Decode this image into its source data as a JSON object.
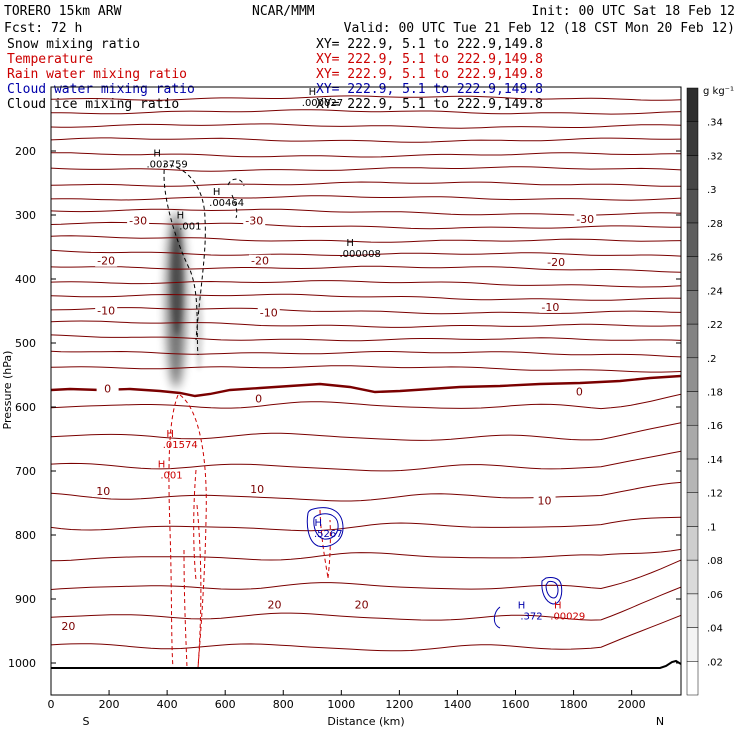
{
  "header": {
    "model": "TORERO  15km ARW",
    "org": "NCAR/MMM",
    "init": "Init: 00 UTC Sat 18 Feb 12",
    "fcst": "Fcst:   72 h",
    "valid": "Valid: 00 UTC Tue 21 Feb 12 (18 CST Mon 20 Feb 12)",
    "fields": [
      {
        "name": "Snow mixing ratio",
        "xy": "XY= 222.9,  5.1 to 222.9,149.8",
        "color": "#000000"
      },
      {
        "name": "Temperature",
        "xy": "XY= 222.9,  5.1 to 222.9,149.8",
        "color": "#cc0000"
      },
      {
        "name": "Rain water mixing ratio",
        "xy": "XY= 222.9,  5.1 to 222.9,149.8",
        "color": "#cc0000"
      },
      {
        "name": "Cloud water mixing ratio",
        "xy": "XY= 222.9,  5.1 to 222.9,149.8",
        "color": "#0000aa"
      },
      {
        "name": "Cloud ice mixing ratio",
        "xy": "XY= 222.9,  5.1 to 222.9,149.8",
        "color": "#000000"
      }
    ]
  },
  "chart_data": {
    "type": "cross-section contour",
    "xlabel": "Distance (km)",
    "ylabel": "Pressure (hPa)",
    "xlim": [
      0,
      2170
    ],
    "ylim": [
      1050,
      100
    ],
    "x_ticks": [
      0,
      200,
      400,
      600,
      800,
      1000,
      1200,
      1400,
      1600,
      1800,
      2000
    ],
    "y_ticks": [
      200,
      300,
      400,
      500,
      600,
      700,
      800,
      900,
      1000
    ],
    "x_end_labels": {
      "left": "S",
      "right": "N"
    },
    "colorbar": {
      "unit": "g kg⁻¹",
      "levels": [
        ".02",
        ".04",
        ".06",
        ".08",
        ".1",
        ".12",
        ".14",
        ".16",
        ".18",
        ".2",
        ".22",
        ".24",
        ".26",
        ".28",
        ".3",
        ".32",
        ".34"
      ]
    },
    "temperature_labels": [
      {
        "text": "-30",
        "x": 300,
        "p": 310
      },
      {
        "text": "-30",
        "x": 700,
        "p": 310
      },
      {
        "text": "-30",
        "x": 1840,
        "p": 308
      },
      {
        "text": "-20",
        "x": 190,
        "p": 373
      },
      {
        "text": "-20",
        "x": 720,
        "p": 373
      },
      {
        "text": "-20",
        "x": 1740,
        "p": 375
      },
      {
        "text": "-10",
        "x": 190,
        "p": 451
      },
      {
        "text": "-10",
        "x": 750,
        "p": 454
      },
      {
        "text": "-10",
        "x": 1720,
        "p": 445
      },
      {
        "text": "0",
        "x": 195,
        "p": 573
      },
      {
        "text": "0",
        "x": 715,
        "p": 588
      },
      {
        "text": "0",
        "x": 1820,
        "p": 577
      },
      {
        "text": "10",
        "x": 180,
        "p": 733
      },
      {
        "text": "10",
        "x": 710,
        "p": 730
      },
      {
        "text": "10",
        "x": 1700,
        "p": 748
      },
      {
        "text": "20",
        "x": 60,
        "p": 944
      },
      {
        "text": "20",
        "x": 770,
        "p": 910
      },
      {
        "text": "20",
        "x": 1070,
        "p": 910
      }
    ],
    "max_labels": [
      {
        "text": ".003759",
        "x": 400,
        "p": 226,
        "color": "#000000"
      },
      {
        "text": ".00464",
        "x": 605,
        "p": 286,
        "color": "#000000"
      },
      {
        "text": ".001",
        "x": 480,
        "p": 323,
        "color": "#000000"
      },
      {
        "text": ".000008",
        "x": 1065,
        "p": 366,
        "color": "#000000"
      },
      {
        "text": ".000027",
        "x": 935,
        "p": 130,
        "color": "#000000"
      },
      {
        "text": ".01574",
        "x": 445,
        "p": 664,
        "color": "#cc0000"
      },
      {
        "text": ".001",
        "x": 415,
        "p": 712,
        "color": "#cc0000"
      },
      {
        "text": ".5267",
        "x": 955,
        "p": 803,
        "color": "#0000aa"
      },
      {
        "text": ".372",
        "x": 1655,
        "p": 932,
        "color": "#0000aa"
      },
      {
        "text": ".00029",
        "x": 1780,
        "p": 932,
        "color": "#cc0000"
      }
    ]
  }
}
